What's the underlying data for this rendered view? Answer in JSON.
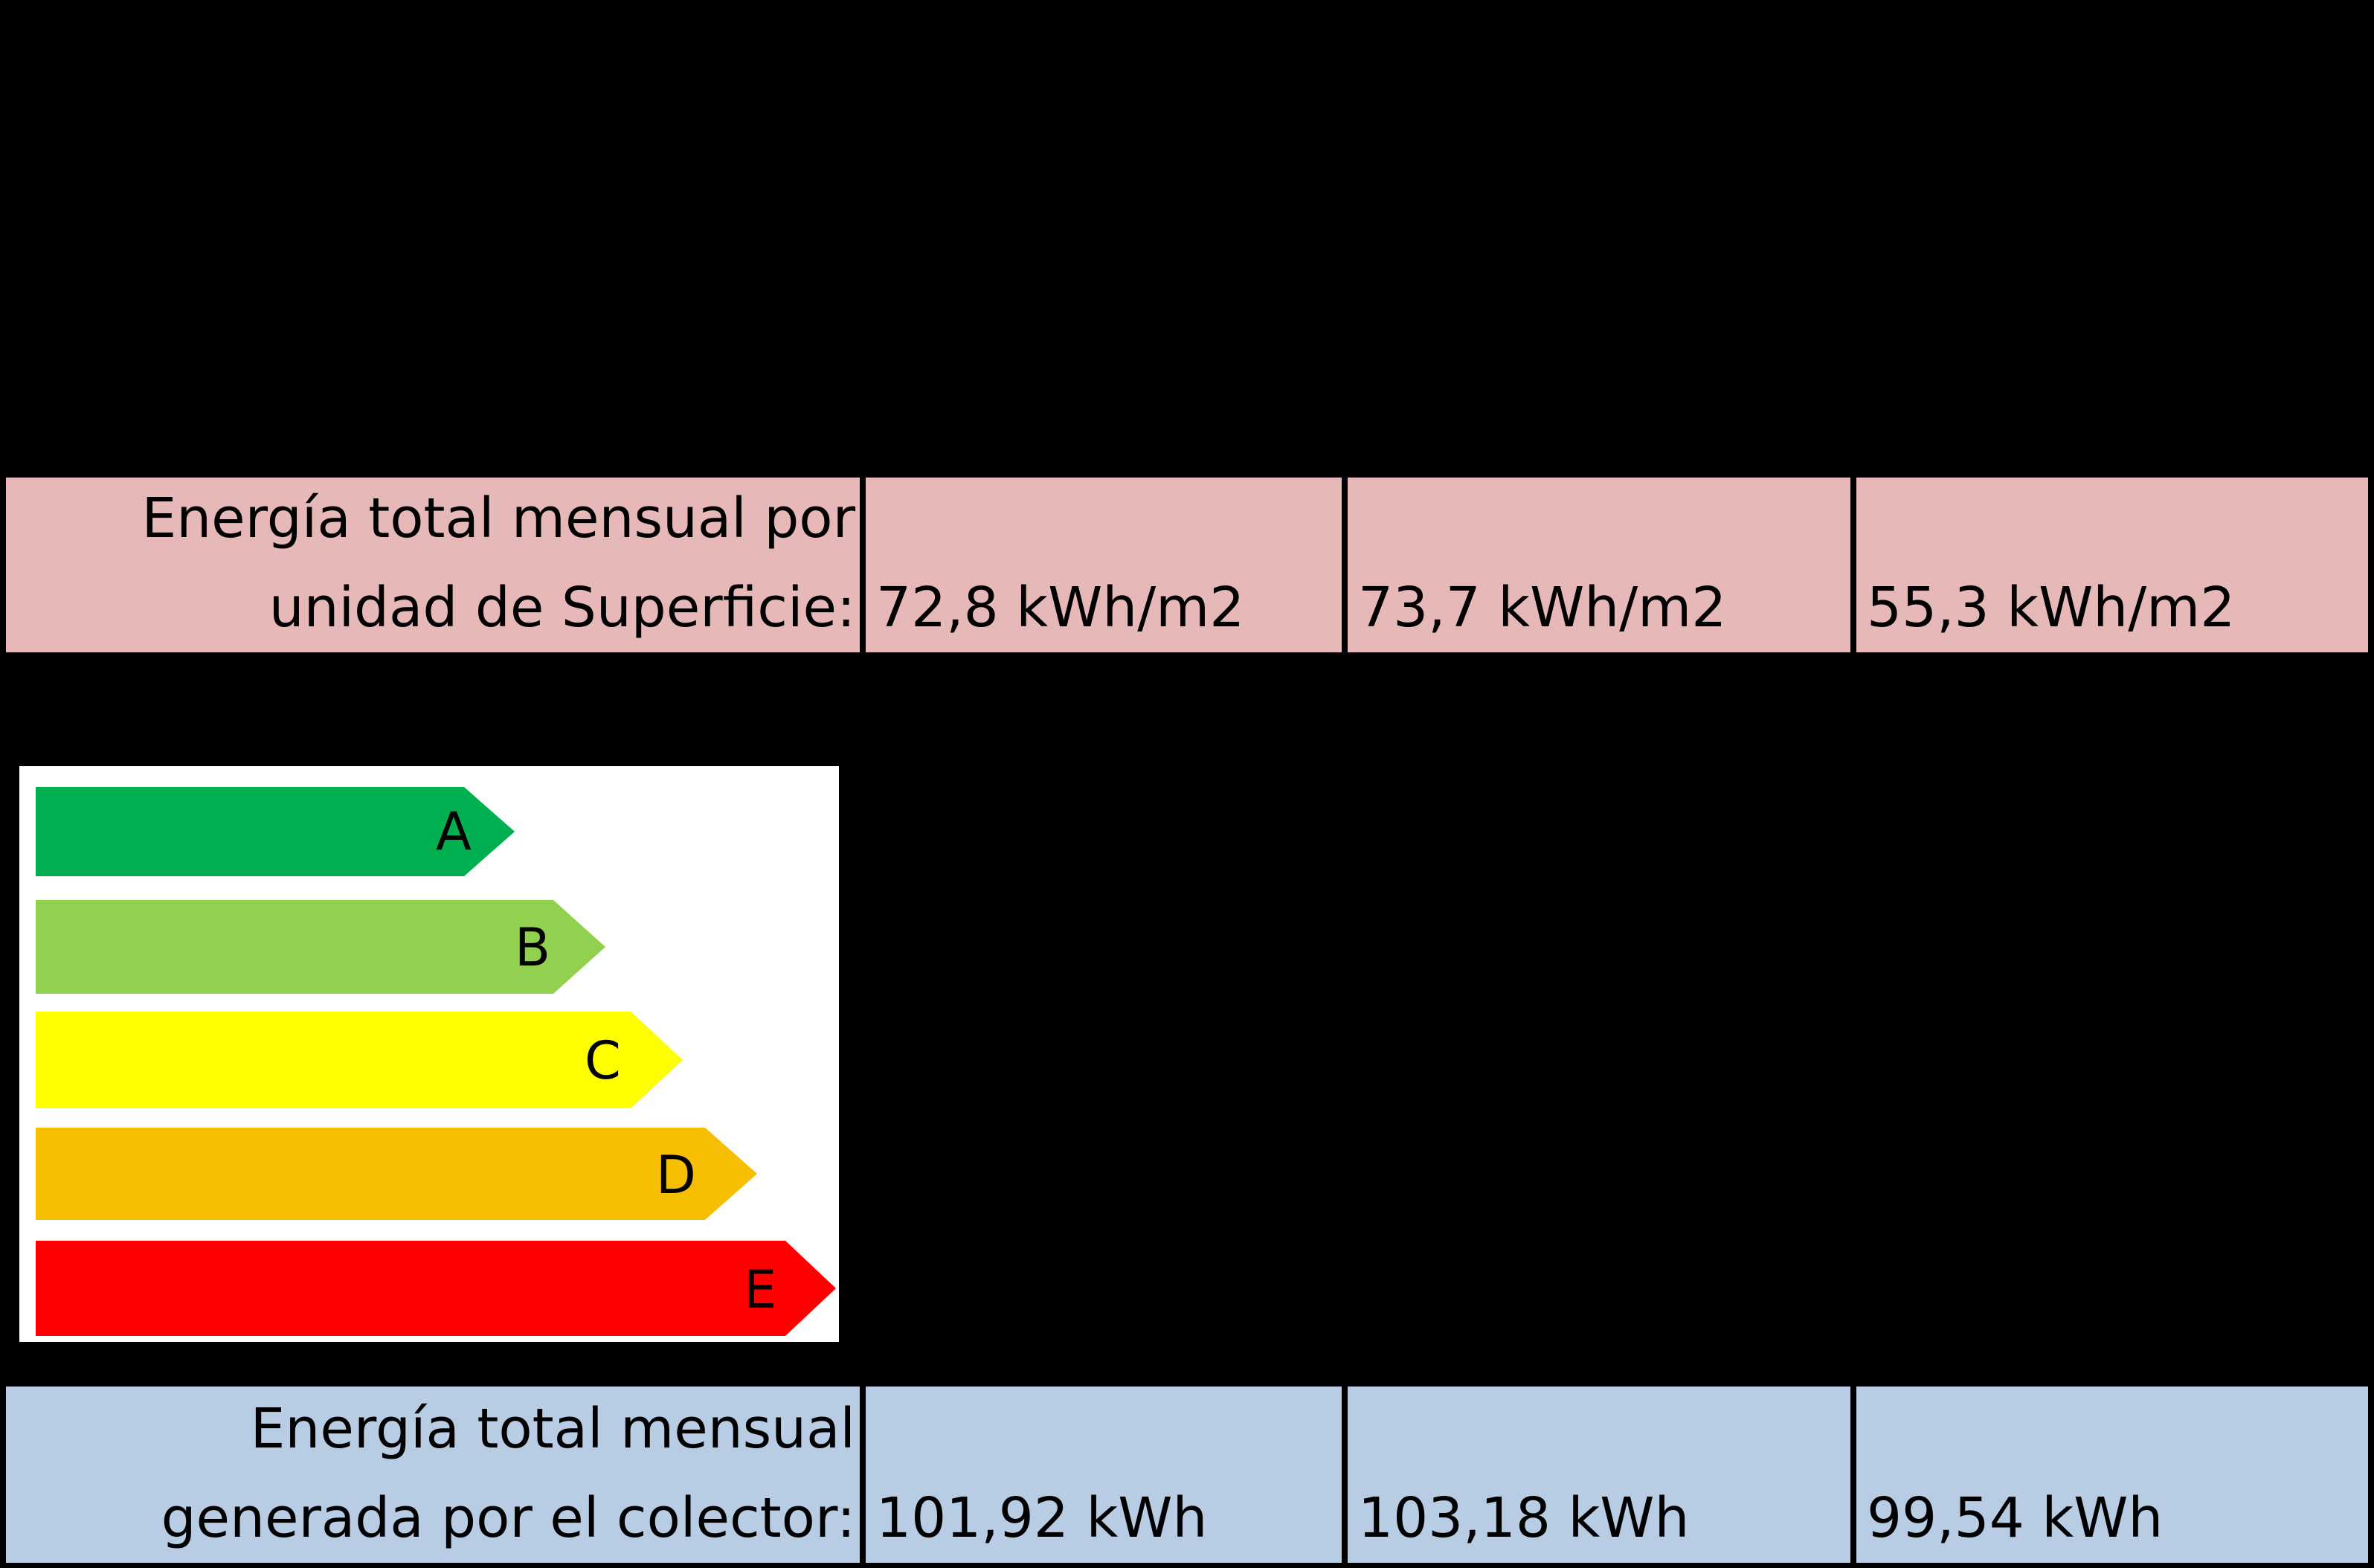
{
  "consumption_row": {
    "label_line1": "Energía total mensual por",
    "label_line2": "unidad de Superficie:",
    "values": [
      "72,8 kWh/m2",
      "73,7 kWh/m2",
      "55,3 kWh/m2"
    ],
    "color": "#e6b9b8"
  },
  "energy_scale": {
    "classes": [
      {
        "letter": "A",
        "color": "#00b050"
      },
      {
        "letter": "B",
        "color": "#92d050"
      },
      {
        "letter": "C",
        "color": "#ffff00"
      },
      {
        "letter": "D",
        "color": "#f5be00"
      },
      {
        "letter": "E",
        "color": "#ff0000"
      }
    ]
  },
  "generation_row": {
    "label_line1": "Energía total mensual",
    "label_line2": "generada por el colector:",
    "values": [
      "101,92 kWh",
      "103,18 kWh",
      "99,54 kWh"
    ],
    "color": "#b8cce4"
  }
}
